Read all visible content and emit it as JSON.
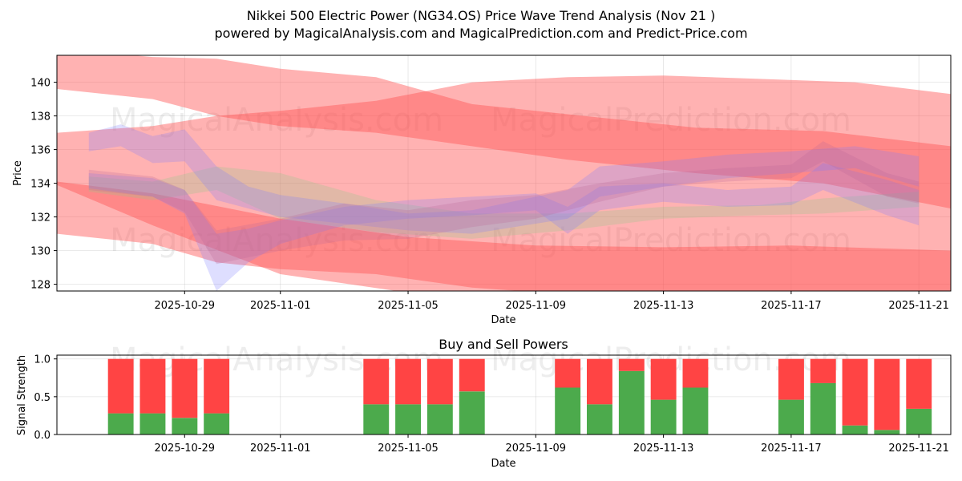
{
  "title_line1": "Nikkei 500 Electric Power (NG34.OS) Price Wave Trend Analysis (Nov 21 )",
  "title_line2": "powered by MagicalAnalysis.com and MagicalPrediction.com and Predict-Price.com",
  "watermarks": [
    "MagicalAnalysis.com",
    "MagicalPrediction.com"
  ],
  "chart_data": [
    {
      "type": "area",
      "title": "",
      "xlabel": "Date",
      "ylabel": "Price",
      "xlim": [
        "2025-10-25",
        "2025-11-22"
      ],
      "ylim": [
        127.6,
        141.6
      ],
      "x_ticks": [
        "2025-10-29",
        "2025-11-01",
        "2025-11-05",
        "2025-11-09",
        "2025-11-13",
        "2025-11-17",
        "2025-11-21"
      ],
      "y_ticks": [
        128,
        130,
        132,
        134,
        136,
        138,
        140
      ],
      "grid": true,
      "series": [
        {
          "name": "upper-red-band",
          "color": "#ff5555",
          "x": [
            "2025-10-25",
            "2025-10-28",
            "2025-10-30",
            "2025-11-01",
            "2025-11-04",
            "2025-11-07",
            "2025-11-10",
            "2025-11-14",
            "2025-11-18",
            "2025-11-22"
          ],
          "upper": [
            142.0,
            141.5,
            141.4,
            140.8,
            140.3,
            138.7,
            138.1,
            137.3,
            137.1,
            136.2
          ],
          "lower": [
            139.6,
            139.0,
            138.0,
            137.4,
            137.0,
            136.2,
            135.4,
            134.6,
            134.0,
            132.5
          ]
        },
        {
          "name": "middle-red-band",
          "color": "#ff5555",
          "x": [
            "2025-10-25",
            "2025-10-28",
            "2025-10-30",
            "2025-11-01",
            "2025-11-04",
            "2025-11-07",
            "2025-11-10",
            "2025-11-13",
            "2025-11-16",
            "2025-11-19",
            "2025-11-22"
          ],
          "upper": [
            137.0,
            137.4,
            138.0,
            138.3,
            138.9,
            140.0,
            140.3,
            140.4,
            140.2,
            140.0,
            139.3
          ],
          "lower": [
            131.0,
            130.4,
            129.3,
            128.9,
            128.6,
            127.8,
            127.4,
            127.2,
            127.0,
            126.7,
            126.2
          ]
        },
        {
          "name": "lower-red-band",
          "color": "#ff5555",
          "x": [
            "2025-10-25",
            "2025-10-28",
            "2025-11-01",
            "2025-11-05",
            "2025-11-09",
            "2025-11-13",
            "2025-11-17",
            "2025-11-22"
          ],
          "upper": [
            134.1,
            133.4,
            131.9,
            130.8,
            130.3,
            130.2,
            130.3,
            130.0
          ],
          "lower": [
            133.9,
            131.5,
            128.6,
            127.5,
            127.2,
            127.3,
            127.2,
            127.3
          ]
        },
        {
          "name": "green-band",
          "color": "#88cc88",
          "x": [
            "2025-10-26",
            "2025-10-28",
            "2025-10-30",
            "2025-11-01",
            "2025-11-04",
            "2025-11-07",
            "2025-11-10",
            "2025-11-13",
            "2025-11-16",
            "2025-11-18",
            "2025-11-21"
          ],
          "upper": [
            134.4,
            134.1,
            135.0,
            134.6,
            133.0,
            132.2,
            132.2,
            132.6,
            132.7,
            133.1,
            133.5
          ],
          "lower": [
            133.5,
            133.0,
            133.6,
            131.9,
            131.1,
            130.7,
            131.2,
            131.9,
            132.1,
            132.2,
            132.6
          ]
        },
        {
          "name": "blue-wave-a",
          "color": "#7a7aff",
          "x": [
            "2025-10-26",
            "2025-10-27",
            "2025-10-28",
            "2025-10-29",
            "2025-10-30",
            "2025-10-31",
            "2025-11-01",
            "2025-11-03",
            "2025-11-05",
            "2025-11-07",
            "2025-11-09",
            "2025-11-10",
            "2025-11-11",
            "2025-11-13",
            "2025-11-15",
            "2025-11-17",
            "2025-11-19",
            "2025-11-21"
          ],
          "upper": [
            137.0,
            137.5,
            136.8,
            137.2,
            135.0,
            133.8,
            133.3,
            132.8,
            132.2,
            132.4,
            133.2,
            133.6,
            135.0,
            135.3,
            135.7,
            135.9,
            136.2,
            135.6
          ],
          "lower": [
            135.9,
            136.2,
            135.2,
            135.3,
            133.0,
            132.5,
            132.0,
            131.6,
            131.2,
            131.0,
            131.6,
            131.9,
            133.2,
            133.8,
            134.3,
            134.6,
            134.9,
            133.8
          ]
        },
        {
          "name": "blue-wave-b",
          "color": "#7a7aff",
          "x": [
            "2025-10-26",
            "2025-10-28",
            "2025-10-29",
            "2025-10-30",
            "2025-10-31",
            "2025-11-01",
            "2025-11-03",
            "2025-11-05",
            "2025-11-07",
            "2025-11-09",
            "2025-11-10",
            "2025-11-11",
            "2025-11-13",
            "2025-11-15",
            "2025-11-17",
            "2025-11-18",
            "2025-11-20",
            "2025-11-21"
          ],
          "upper": [
            134.6,
            134.3,
            133.6,
            131.0,
            131.3,
            131.8,
            132.6,
            133.0,
            133.2,
            133.4,
            132.6,
            133.8,
            134.0,
            133.6,
            133.8,
            135.2,
            134.2,
            133.6
          ],
          "lower": [
            133.7,
            133.2,
            132.2,
            127.6,
            129.3,
            130.4,
            131.5,
            131.9,
            132.1,
            132.4,
            131.0,
            132.4,
            132.9,
            132.6,
            132.7,
            133.6,
            132.1,
            131.5
          ]
        },
        {
          "name": "purple-wave",
          "color": "#bb6699",
          "x": [
            "2025-10-26",
            "2025-10-28",
            "2025-10-29",
            "2025-10-30",
            "2025-11-01",
            "2025-11-03",
            "2025-11-05",
            "2025-11-07",
            "2025-11-09",
            "2025-11-11",
            "2025-11-13",
            "2025-11-15",
            "2025-11-17",
            "2025-11-18",
            "2025-11-20",
            "2025-11-21"
          ],
          "upper": [
            134.8,
            134.4,
            133.6,
            131.2,
            131.9,
            132.8,
            132.4,
            133.0,
            133.3,
            134.0,
            134.6,
            134.9,
            135.1,
            136.5,
            134.6,
            134.1
          ],
          "lower": [
            133.6,
            133.2,
            132.3,
            129.2,
            130.0,
            130.6,
            130.7,
            131.4,
            131.9,
            132.9,
            133.8,
            134.1,
            134.3,
            135.3,
            133.2,
            132.8
          ]
        }
      ]
    },
    {
      "type": "bar",
      "title": "Buy and Sell Powers",
      "xlabel": "Date",
      "ylabel": "Signal Strength",
      "ylim": [
        0,
        1.05
      ],
      "y_ticks": [
        "0.0",
        "0.5",
        "1.0"
      ],
      "x_ticks": [
        "2025-10-29",
        "2025-11-01",
        "2025-11-05",
        "2025-11-09",
        "2025-11-13",
        "2025-11-17",
        "2025-11-21"
      ],
      "categories": [
        "2025-10-27",
        "2025-10-28",
        "2025-10-29",
        "2025-10-30",
        "2025-11-04",
        "2025-11-05",
        "2025-11-06",
        "2025-11-07",
        "2025-11-10",
        "2025-11-11",
        "2025-11-12",
        "2025-11-13",
        "2025-11-14",
        "2025-11-17",
        "2025-11-18",
        "2025-11-19",
        "2025-11-20",
        "2025-11-21"
      ],
      "series": [
        {
          "name": "Buy",
          "color": "#4caa4c",
          "values": [
            0.28,
            0.28,
            0.22,
            0.28,
            0.4,
            0.4,
            0.4,
            0.57,
            0.62,
            0.4,
            0.84,
            0.46,
            0.62,
            0.46,
            0.68,
            0.12,
            0.06,
            0.34
          ]
        },
        {
          "name": "Sell",
          "color": "#ff4444",
          "values": [
            0.72,
            0.72,
            0.78,
            0.72,
            0.6,
            0.6,
            0.6,
            0.43,
            0.38,
            0.6,
            0.16,
            0.54,
            0.38,
            0.54,
            0.32,
            0.88,
            0.94,
            0.66
          ]
        }
      ]
    }
  ]
}
